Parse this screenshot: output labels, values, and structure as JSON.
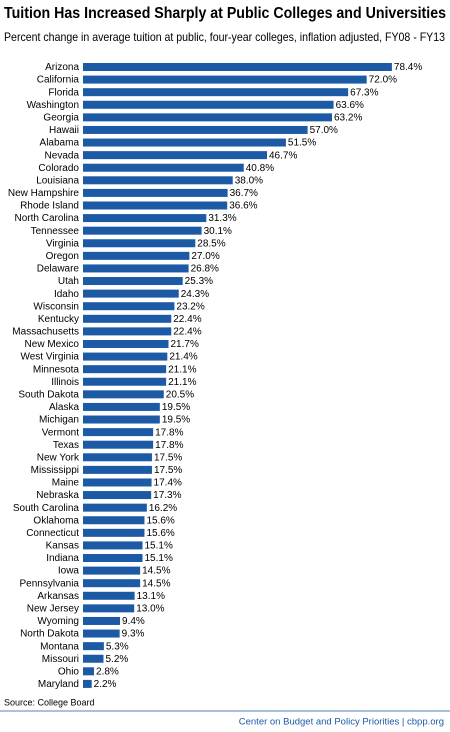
{
  "chart_data": {
    "type": "bar",
    "title": "Tuition Has Increased Sharply at Public Colleges and Universities",
    "subtitle": "Percent change in average tuition at public, four-year colleges, inflation adjusted, FY08 - FY13",
    "categories": [
      "Arizona",
      "California",
      "Florida",
      "Washington",
      "Georgia",
      "Hawaii",
      "Alabama",
      "Nevada",
      "Colorado",
      "Louisiana",
      "New Hampshire",
      "Rhode Island",
      "North Carolina",
      "Tennessee",
      "Virginia",
      "Oregon",
      "Delaware",
      "Utah",
      "Idaho",
      "Wisconsin",
      "Kentucky",
      "Massachusetts",
      "New Mexico",
      "West Virginia",
      "Minnesota",
      "Illinois",
      "South Dakota",
      "Alaska",
      "Michigan",
      "Vermont",
      "Texas",
      "New York",
      "Mississippi",
      "Maine",
      "Nebraska",
      "South Carolina",
      "Oklahoma",
      "Connecticut",
      "Kansas",
      "Indiana",
      "Iowa",
      "Pennsylvania",
      "Arkansas",
      "New Jersey",
      "Wyoming",
      "North Dakota",
      "Montana",
      "Missouri",
      "Ohio",
      "Maryland"
    ],
    "values": [
      78.4,
      72.0,
      67.3,
      63.6,
      63.2,
      57.0,
      51.5,
      46.7,
      40.8,
      38.0,
      36.7,
      36.6,
      31.3,
      30.1,
      28.5,
      27.0,
      26.8,
      25.3,
      24.3,
      23.2,
      22.4,
      22.4,
      21.7,
      21.4,
      21.1,
      21.1,
      20.5,
      19.5,
      19.5,
      17.8,
      17.8,
      17.5,
      17.5,
      17.4,
      17.3,
      16.2,
      15.6,
      15.6,
      15.1,
      15.1,
      14.5,
      14.5,
      13.1,
      13.0,
      9.4,
      9.3,
      5.3,
      5.2,
      2.8,
      2.2
    ],
    "value_labels": [
      "78.4%",
      "72.0%",
      "67.3%",
      "63.6%",
      "63.2%",
      "57.0%",
      "51.5%",
      "46.7%",
      "40.8%",
      "38.0%",
      "36.7%",
      "36.6%",
      "31.3%",
      "30.1%",
      "28.5%",
      "27.0%",
      "26.8%",
      "25.3%",
      "24.3%",
      "23.2%",
      "22.4%",
      "22.4%",
      "21.7%",
      "21.4%",
      "21.1%",
      "21.1%",
      "20.5%",
      "19.5%",
      "19.5%",
      "17.8%",
      "17.8%",
      "17.5%",
      "17.5%",
      "17.4%",
      "17.3%",
      "16.2%",
      "15.6%",
      "15.6%",
      "15.1%",
      "15.1%",
      "14.5%",
      "14.5%",
      "13.1%",
      "13.0%",
      "9.4%",
      "9.3%",
      "5.3%",
      "5.2%",
      "2.8%",
      "2.2%"
    ],
    "color": "#1c5aa6",
    "source": "Source: College Board",
    "footer": "Center on Budget and Policy Priorities | cbpp.org"
  }
}
